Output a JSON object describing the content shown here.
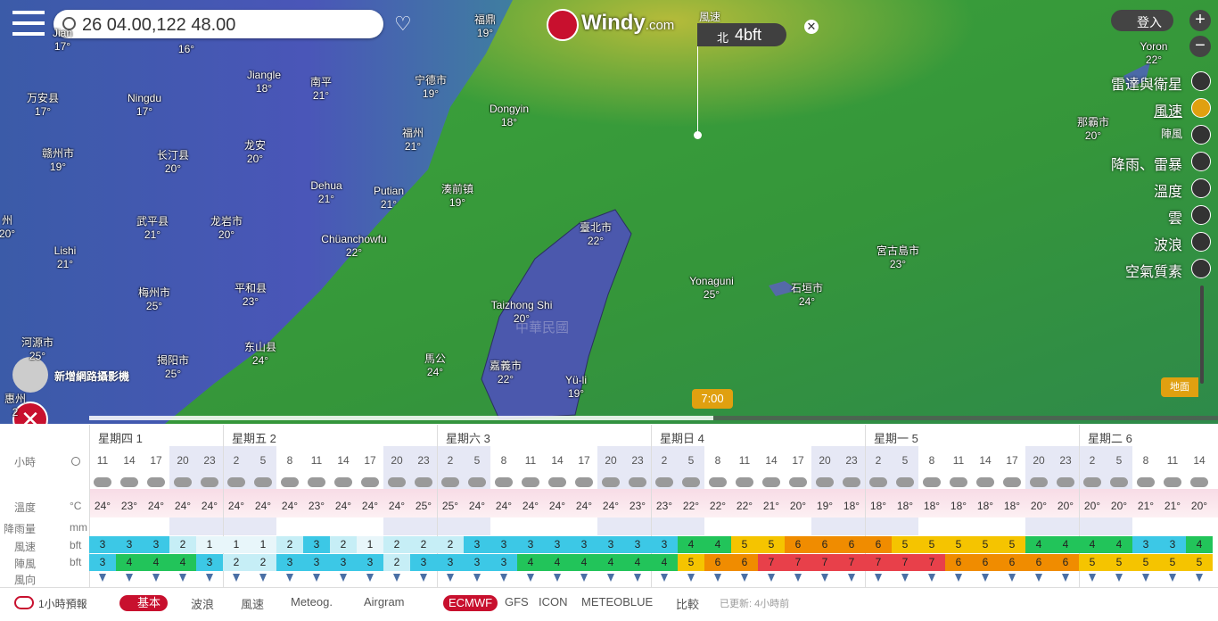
{
  "search": {
    "query": "26 04.00,122 48.00"
  },
  "logo": {
    "brand": "Windy",
    "suffix": ".com"
  },
  "picker": {
    "layer": "風速",
    "direction": "北",
    "value": "4bft"
  },
  "login": "登入",
  "layers": [
    "雷達與衛星",
    "風速",
    "陣風",
    "降雨、雷暴",
    "溫度",
    "雲",
    "波浪",
    "空氣質素"
  ],
  "map_labels": [
    {
      "name": "Jian",
      "temp": "17°"
    },
    {
      "temp": "16°"
    },
    {
      "name": "福鼎",
      "temp": "19°"
    },
    {
      "name": "Jiangle",
      "temp": "18°"
    },
    {
      "name": "南平",
      "temp": "21°"
    },
    {
      "name": "宁德市",
      "temp": "19°"
    },
    {
      "name": "万安县",
      "temp": "17°"
    },
    {
      "name": "Ningdu",
      "temp": "17°"
    },
    {
      "name": "Dongyin",
      "temp": "18°"
    },
    {
      "name": "福州",
      "temp": "21°"
    },
    {
      "name": "龙安",
      "temp": "20°"
    },
    {
      "name": "赣州市",
      "temp": "19°"
    },
    {
      "name": "长汀县",
      "temp": "20°"
    },
    {
      "name": "Dehua",
      "temp": "21°"
    },
    {
      "name": "Putian",
      "temp": "21°"
    },
    {
      "name": "湊前镇",
      "temp": "19°"
    },
    {
      "name": "州",
      "temp": "20°"
    },
    {
      "name": "武平县",
      "temp": "21°"
    },
    {
      "name": "龙岩市",
      "temp": "20°"
    },
    {
      "name": "臺北市",
      "temp": "22°"
    },
    {
      "name": "Lishi",
      "temp": "21°"
    },
    {
      "name": "Chüanchowfu",
      "temp": "22°"
    },
    {
      "name": "宮古島市",
      "temp": "23°"
    },
    {
      "name": "Yonaguni",
      "temp": "25°"
    },
    {
      "name": "石垣市",
      "temp": "24°"
    },
    {
      "name": "梅州市",
      "temp": "25°"
    },
    {
      "name": "平和县",
      "temp": "23°"
    },
    {
      "name": "Taizhong Shi",
      "temp": "20°"
    },
    {
      "name": "河源市",
      "temp": "25°"
    },
    {
      "name": "揭阳市",
      "temp": "25°"
    },
    {
      "name": "东山县",
      "temp": "24°"
    },
    {
      "name": "馬公",
      "temp": "24°"
    },
    {
      "name": "嘉義市",
      "temp": "22°"
    },
    {
      "name": "Yü-li",
      "temp": "19°"
    },
    {
      "name": "惠州",
      "temp": "2"
    },
    {
      "name": "Yoron",
      "temp": "22°"
    },
    {
      "name": "那霸市",
      "temp": "20°"
    }
  ],
  "country": "中華民國",
  "webcam": "新增網路攝影機",
  "time": "7:00",
  "level": "地面",
  "forecast": {
    "days": [
      "星期四 1",
      "星期五 2",
      "星期六 3",
      "星期日 4",
      "星期一 5",
      "星期二 6"
    ],
    "row_labels": [
      "小時",
      "溫度",
      "降雨量",
      "風速",
      "陣風",
      "風向"
    ],
    "units": [
      "°C",
      "mm",
      "bft",
      "bft"
    ],
    "hours": [
      11,
      14,
      17,
      20,
      23,
      2,
      5,
      8,
      11,
      14,
      17,
      20,
      23,
      2,
      5,
      8,
      11,
      14,
      17,
      20,
      23,
      2,
      5,
      8,
      11,
      14,
      17,
      20,
      23,
      2,
      5,
      8,
      11,
      14,
      17,
      20,
      23,
      2,
      5,
      8,
      11,
      14
    ],
    "temps": [
      "24°",
      "23°",
      "24°",
      "24°",
      "24°",
      "24°",
      "24°",
      "24°",
      "23°",
      "24°",
      "24°",
      "24°",
      "25°",
      "25°",
      "24°",
      "24°",
      "24°",
      "24°",
      "24°",
      "24°",
      "23°",
      "23°",
      "22°",
      "22°",
      "22°",
      "21°",
      "20°",
      "19°",
      "18°",
      "18°",
      "18°",
      "18°",
      "18°",
      "18°",
      "18°",
      "20°",
      "20°",
      "20°",
      "20°",
      "21°",
      "21°",
      "20°"
    ],
    "wind": [
      3,
      3,
      3,
      2,
      1,
      1,
      1,
      2,
      3,
      2,
      1,
      2,
      2,
      2,
      3,
      3,
      3,
      3,
      3,
      3,
      3,
      3,
      4,
      4,
      5,
      5,
      6,
      6,
      6,
      6,
      5,
      5,
      5,
      5,
      5,
      4,
      4,
      4,
      4,
      3,
      3,
      4
    ],
    "gust": [
      3,
      4,
      4,
      4,
      3,
      2,
      2,
      3,
      3,
      3,
      3,
      2,
      3,
      3,
      3,
      3,
      4,
      4,
      4,
      4,
      4,
      4,
      5,
      6,
      6,
      7,
      7,
      7,
      7,
      7,
      7,
      7,
      6,
      6,
      6,
      6,
      6,
      5,
      5,
      5,
      5,
      5
    ]
  },
  "bottom": {
    "hourly": "1小時預報",
    "tabs": [
      "基本",
      "波浪",
      "風速",
      "Meteog.",
      "Airgram"
    ],
    "models": [
      "ECMWF",
      "GFS",
      "ICON",
      "METEOBLUE"
    ],
    "compare": "比較",
    "updated": "已更新: 4小時前"
  }
}
